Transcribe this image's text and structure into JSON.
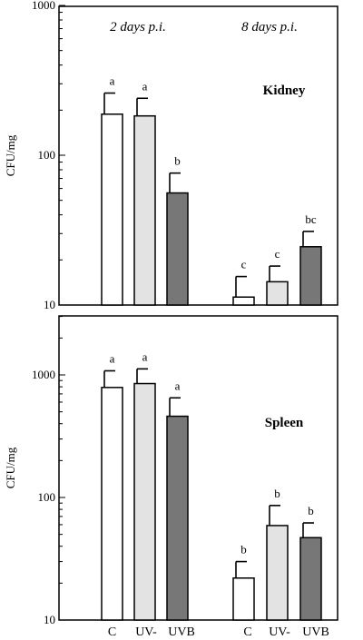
{
  "chart_data": [
    {
      "type": "bar",
      "panel_label": "Kidney",
      "ylabel": "CFU/mg",
      "yscale": "log",
      "ylim": [
        10,
        1000
      ],
      "ytick_labels": [
        "10",
        "100",
        "1000"
      ],
      "groups": [
        "2 days p.i.",
        "8 days p.i."
      ],
      "categories": [
        "C",
        "UV-",
        "UVB"
      ],
      "colors": {
        "C": "#ffffff",
        "UV-": "#e3e3e3",
        "UVB": "#777777"
      },
      "bars": [
        {
          "group": 0,
          "cat": 0,
          "value": 188,
          "err": 260,
          "letter": "a"
        },
        {
          "group": 0,
          "cat": 1,
          "value": 183,
          "err": 240,
          "letter": "a"
        },
        {
          "group": 0,
          "cat": 2,
          "value": 56,
          "err": 76,
          "letter": "b"
        },
        {
          "group": 1,
          "cat": 0,
          "value": 11.3,
          "err": 15.5,
          "letter": "c"
        },
        {
          "group": 1,
          "cat": 1,
          "value": 14.3,
          "err": 18.2,
          "letter": "c"
        },
        {
          "group": 1,
          "cat": 2,
          "value": 24.5,
          "err": 31,
          "letter": "bc"
        }
      ]
    },
    {
      "type": "bar",
      "panel_label": "Spleen",
      "ylabel": "CFU/mg",
      "yscale": "log",
      "ylim": [
        10,
        3000
      ],
      "ytick_labels": [
        "10",
        "100",
        "1000"
      ],
      "groups": [
        "2 days p.i.",
        "8 days p.i."
      ],
      "categories": [
        "C",
        "UV-",
        "UVB"
      ],
      "category_labels": [
        "C",
        "UV-",
        "UVB",
        "C",
        "UV-",
        "UVB"
      ],
      "colors": {
        "C": "#ffffff",
        "UV-": "#e3e3e3",
        "UVB": "#777777"
      },
      "bars": [
        {
          "group": 0,
          "cat": 0,
          "value": 790,
          "err": 1080,
          "letter": "a"
        },
        {
          "group": 0,
          "cat": 1,
          "value": 850,
          "err": 1120,
          "letter": "a"
        },
        {
          "group": 0,
          "cat": 2,
          "value": 460,
          "err": 650,
          "letter": "a"
        },
        {
          "group": 1,
          "cat": 0,
          "value": 22,
          "err": 30,
          "letter": "b"
        },
        {
          "group": 1,
          "cat": 1,
          "value": 59,
          "err": 86,
          "letter": "b"
        },
        {
          "group": 1,
          "cat": 2,
          "value": 47,
          "err": 62,
          "letter": "b"
        }
      ]
    }
  ]
}
